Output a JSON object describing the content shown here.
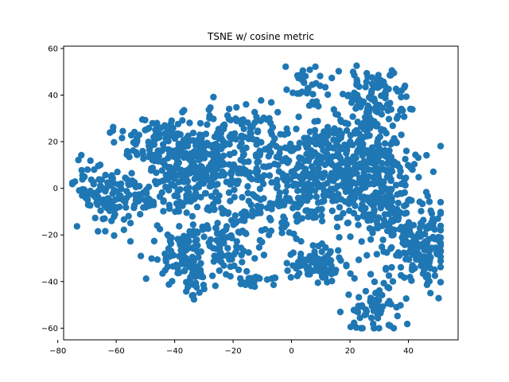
{
  "chart_data": {
    "type": "scatter",
    "title": "TSNE w/ cosine metric",
    "xlabel": "",
    "ylabel": "",
    "xlim": [
      -78,
      57
    ],
    "ylim": [
      -65,
      61
    ],
    "xticks": [
      -80,
      -60,
      -40,
      -20,
      0,
      20,
      40
    ],
    "yticks": [
      -60,
      -40,
      -20,
      0,
      20,
      40,
      60
    ],
    "xtick_labels": [
      "−80",
      "−60",
      "−40",
      "−20",
      "0",
      "20",
      "40"
    ],
    "ytick_labels": [
      "−60",
      "−40",
      "−20",
      "0",
      "20",
      "40",
      "60"
    ],
    "grid": false,
    "marker_color": "#1f77b4",
    "point_count_estimate": 2000,
    "clusters": [
      {
        "region": "far-left blob",
        "center": [
          -62,
          -4
        ],
        "spread": [
          6,
          7
        ],
        "count": 110
      },
      {
        "region": "far-left tail",
        "center": [
          -70,
          4
        ],
        "spread": [
          3,
          6
        ],
        "count": 20
      },
      {
        "region": "upper-left band",
        "center": [
          -45,
          22
        ],
        "spread": [
          8,
          5
        ],
        "count": 80
      },
      {
        "region": "left-central mass",
        "center": [
          -38,
          5
        ],
        "spread": [
          8,
          10
        ],
        "count": 160
      },
      {
        "region": "center-left mass",
        "center": [
          -25,
          10
        ],
        "spread": [
          9,
          10
        ],
        "count": 220
      },
      {
        "region": "center-left upper arm",
        "center": [
          -15,
          28
        ],
        "spread": [
          6,
          5
        ],
        "count": 40
      },
      {
        "region": "lower-left group",
        "center": [
          -38,
          -28
        ],
        "spread": [
          5,
          6
        ],
        "count": 90
      },
      {
        "region": "lower-center-left",
        "center": [
          -22,
          -22
        ],
        "spread": [
          6,
          8
        ],
        "count": 90
      },
      {
        "region": "small low cluster",
        "center": [
          -13,
          -40
        ],
        "spread": [
          4,
          2
        ],
        "count": 20
      },
      {
        "region": "lower-left arm",
        "center": [
          -33,
          -38
        ],
        "spread": [
          3,
          4
        ],
        "count": 25
      },
      {
        "region": "middle band",
        "center": [
          -5,
          -5
        ],
        "spread": [
          6,
          10
        ],
        "count": 90
      },
      {
        "region": "central mass",
        "center": [
          10,
          10
        ],
        "spread": [
          8,
          12
        ],
        "count": 240
      },
      {
        "region": "right-central mass",
        "center": [
          25,
          5
        ],
        "spread": [
          8,
          12
        ],
        "count": 260
      },
      {
        "region": "upper-right group",
        "center": [
          28,
          38
        ],
        "spread": [
          6,
          8
        ],
        "count": 120
      },
      {
        "region": "top-center group",
        "center": [
          5,
          45
        ],
        "spread": [
          4,
          4
        ],
        "count": 30
      },
      {
        "region": "far-right lower mass",
        "center": [
          44,
          -25
        ],
        "spread": [
          5,
          8
        ],
        "count": 150
      },
      {
        "region": "lower-center cluster",
        "center": [
          8,
          -33
        ],
        "spread": [
          5,
          4
        ],
        "count": 90
      },
      {
        "region": "lower-right tail",
        "center": [
          28,
          -50
        ],
        "spread": [
          5,
          6
        ],
        "count": 70
      },
      {
        "region": "right band",
        "center": [
          35,
          -10
        ],
        "spread": [
          6,
          10
        ],
        "count": 110
      }
    ]
  }
}
